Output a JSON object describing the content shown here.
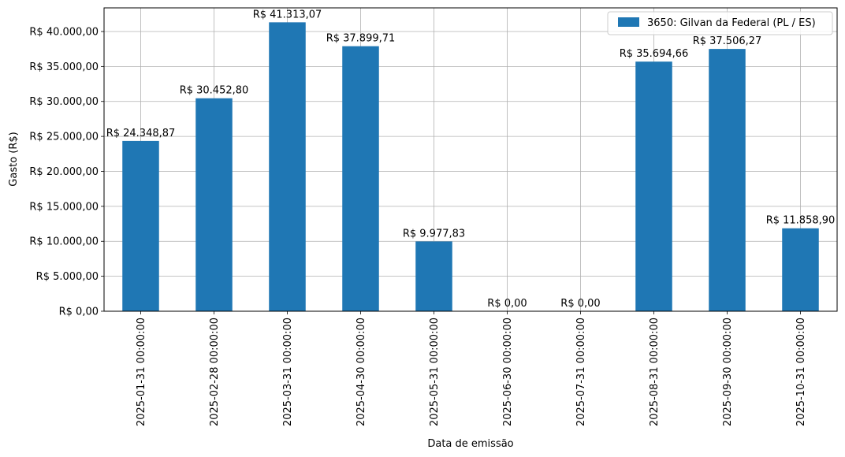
{
  "chart_data": {
    "type": "bar",
    "title": "",
    "xlabel": "Data de emissão",
    "ylabel": "Gasto (R$)",
    "categories": [
      "2025-01-31 00:00:00",
      "2025-02-28 00:00:00",
      "2025-03-31 00:00:00",
      "2025-04-30 00:00:00",
      "2025-05-31 00:00:00",
      "2025-06-30 00:00:00",
      "2025-07-31 00:00:00",
      "2025-08-31 00:00:00",
      "2025-09-30 00:00:00",
      "2025-10-31 00:00:00"
    ],
    "series": [
      {
        "name": "3650: Gilvan da Federal (PL / ES)",
        "color": "#1f77b4",
        "values": [
          24348.87,
          30452.8,
          41313.07,
          37899.71,
          9977.83,
          0,
          0,
          35694.66,
          37506.27,
          11858.9
        ],
        "data_labels": [
          "R$ 24.348,87",
          "R$ 30.452,80",
          "R$ 41.313,07",
          "R$ 37.899,71",
          "R$ 9.977,83",
          "R$ 0,00",
          "R$ 0,00",
          "R$ 35.694,66",
          "R$ 37.506,27",
          "R$ 11.858,90"
        ]
      }
    ],
    "ylim": [
      0,
      43378.72
    ],
    "yticks": [
      0,
      5000,
      10000,
      15000,
      20000,
      25000,
      30000,
      35000,
      40000
    ],
    "ytick_labels": [
      "R$ 0,00",
      "R$ 5.000,00",
      "R$ 10.000,00",
      "R$ 15.000,00",
      "R$ 20.000,00",
      "R$ 25.000,00",
      "R$ 30.000,00",
      "R$ 35.000,00",
      "R$ 40.000,00"
    ],
    "grid": true,
    "legend_position": "top-right"
  }
}
